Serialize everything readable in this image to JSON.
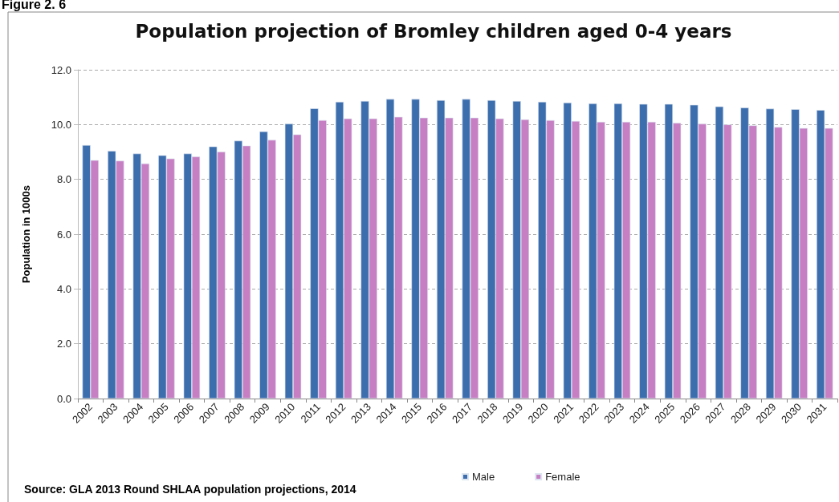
{
  "chart_data": {
    "type": "bar",
    "title": "Population projection of Bromley children aged 0-4 years",
    "ylabel": "Population in 1000s",
    "annotations": [
      "Figure 2. 6",
      "Source: GLA 2013 Round SHLAA population projections, 2014"
    ],
    "categories": [
      "2002",
      "2003",
      "2004",
      "2005",
      "2006",
      "2007",
      "2008",
      "2009",
      "2010",
      "2011",
      "2012",
      "2013",
      "2014",
      "2015",
      "2016",
      "2017",
      "2018",
      "2019",
      "2020",
      "2021",
      "2022",
      "2023",
      "2024",
      "2025",
      "2026",
      "2027",
      "2028",
      "2029",
      "2030",
      "2031"
    ],
    "series": [
      {
        "name": "Male",
        "color": "#3c6eae",
        "values": [
          9.25,
          9.04,
          8.94,
          8.88,
          8.94,
          9.2,
          9.41,
          9.75,
          10.03,
          10.59,
          10.83,
          10.86,
          10.93,
          10.93,
          10.89,
          10.93,
          10.89,
          10.86,
          10.83,
          10.8,
          10.77,
          10.77,
          10.75,
          10.75,
          10.72,
          10.66,
          10.62,
          10.58,
          10.56,
          10.53
        ]
      },
      {
        "name": "Female",
        "color": "#c77fc4",
        "values": [
          8.7,
          8.68,
          8.58,
          8.76,
          8.83,
          9.01,
          9.23,
          9.44,
          9.64,
          10.16,
          10.22,
          10.22,
          10.28,
          10.25,
          10.25,
          10.25,
          10.22,
          10.19,
          10.16,
          10.13,
          10.1,
          10.1,
          10.1,
          10.06,
          10.03,
          10,
          9.97,
          9.91,
          9.87,
          9.87
        ]
      }
    ],
    "ylim": [
      0,
      12
    ],
    "yticks": [
      {
        "value": 0,
        "label": "0.0"
      },
      {
        "value": 2,
        "label": "2.0"
      },
      {
        "value": 4,
        "label": "4.0"
      },
      {
        "value": 6,
        "label": "6.0"
      },
      {
        "value": 8,
        "label": "8.0"
      },
      {
        "value": 10,
        "label": "10.0"
      },
      {
        "value": 12,
        "label": "12.0"
      }
    ],
    "grid": "y",
    "legend": "bottom"
  }
}
